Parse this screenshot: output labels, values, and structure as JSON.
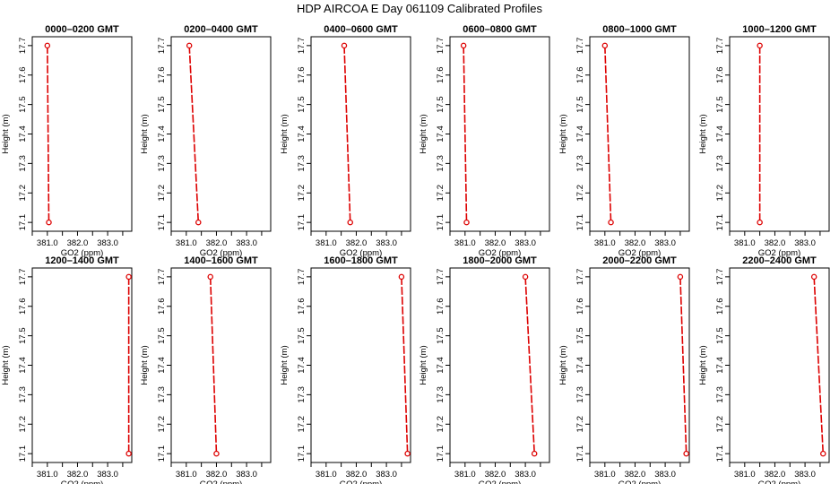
{
  "figure_title": "HDP AIRCOA E  Day 061109  Calibrated Profiles",
  "chart_data": {
    "type": "line",
    "title": "HDP AIRCOA E  Day 061109  Calibrated Profiles",
    "xlabel": "GO2 (ppm)",
    "ylabel": "Height (m)",
    "xlim": [
      380.5,
      383.8
    ],
    "ylim": [
      17.07,
      17.73
    ],
    "x_ticks": [
      "381.0",
      "382.0",
      "383.0"
    ],
    "x_tick_values": [
      381.0,
      382.0,
      383.0
    ],
    "y_ticks": [
      "17.1",
      "17.2",
      "17.3",
      "17.4",
      "17.5",
      "17.6",
      "17.7"
    ],
    "y_tick_values": [
      17.1,
      17.2,
      17.3,
      17.4,
      17.5,
      17.6,
      17.7
    ],
    "grid": false,
    "line_color": "#dd0000",
    "line_style": "dashed",
    "marker": "open-circle",
    "panels": [
      {
        "title": "0000–0200 GMT",
        "points": [
          {
            "x": 381.0,
            "y": 17.7
          },
          {
            "x": 381.05,
            "y": 17.1
          }
        ]
      },
      {
        "title": "0200–0400 GMT",
        "points": [
          {
            "x": 381.1,
            "y": 17.7
          },
          {
            "x": 381.4,
            "y": 17.1
          }
        ]
      },
      {
        "title": "0400–0600 GMT",
        "points": [
          {
            "x": 381.6,
            "y": 17.7
          },
          {
            "x": 381.8,
            "y": 17.1
          }
        ]
      },
      {
        "title": "0600–0800 GMT",
        "points": [
          {
            "x": 380.95,
            "y": 17.7
          },
          {
            "x": 381.05,
            "y": 17.1
          }
        ]
      },
      {
        "title": "0800–1000 GMT",
        "points": [
          {
            "x": 381.0,
            "y": 17.7
          },
          {
            "x": 381.2,
            "y": 17.1
          }
        ]
      },
      {
        "title": "1000–1200 GMT",
        "points": [
          {
            "x": 381.5,
            "y": 17.7
          },
          {
            "x": 381.5,
            "y": 17.1
          }
        ]
      },
      {
        "title": "1200–1400 GMT",
        "points": [
          {
            "x": 383.7,
            "y": 17.7
          },
          {
            "x": 383.7,
            "y": 17.1
          }
        ]
      },
      {
        "title": "1400–1600 GMT",
        "points": [
          {
            "x": 381.8,
            "y": 17.7
          },
          {
            "x": 382.0,
            "y": 17.1
          }
        ]
      },
      {
        "title": "1600–1800 GMT",
        "points": [
          {
            "x": 383.5,
            "y": 17.7
          },
          {
            "x": 383.7,
            "y": 17.1
          }
        ]
      },
      {
        "title": "1800–2000 GMT",
        "points": [
          {
            "x": 383.0,
            "y": 17.7
          },
          {
            "x": 383.3,
            "y": 17.1
          }
        ]
      },
      {
        "title": "2000–2200 GMT",
        "points": [
          {
            "x": 383.5,
            "y": 17.7
          },
          {
            "x": 383.7,
            "y": 17.1
          }
        ]
      },
      {
        "title": "2200–2400 GMT",
        "points": [
          {
            "x": 383.3,
            "y": 17.7
          },
          {
            "x": 383.6,
            "y": 17.1
          }
        ]
      }
    ]
  }
}
